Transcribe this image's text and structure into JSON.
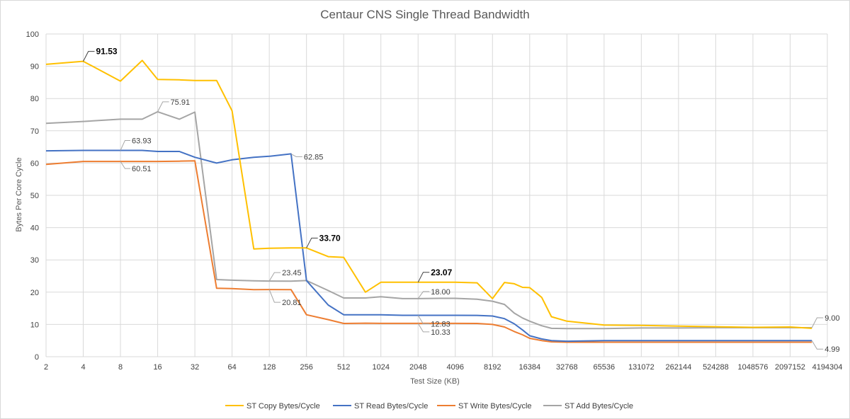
{
  "chart_data": {
    "type": "line",
    "title": "Centaur CNS Single Thread Bandwidth",
    "xlabel": "Test Size (KB)",
    "ylabel": "Bytes Per Core Cycle",
    "x_scale": "log2",
    "x_tick_labels": [
      "2",
      "4",
      "8",
      "16",
      "32",
      "64",
      "128",
      "256",
      "512",
      "1024",
      "2048",
      "4096",
      "8192",
      "16384",
      "32768",
      "65536",
      "131072",
      "262144",
      "524288",
      "1048576",
      "2097152",
      "4194304"
    ],
    "ylim": [
      0,
      100
    ],
    "y_ticks": [
      0,
      10,
      20,
      30,
      40,
      50,
      60,
      70,
      80,
      90,
      100
    ],
    "grid": true,
    "legend_position": "bottom",
    "x": [
      2,
      4,
      8,
      12,
      16,
      24,
      32,
      48,
      64,
      96,
      128,
      192,
      256,
      384,
      512,
      768,
      1024,
      1536,
      2048,
      3072,
      4096,
      6144,
      8192,
      10240,
      12288,
      14336,
      16384,
      20480,
      24576,
      32768,
      65536,
      131072,
      262144,
      524288,
      1048576,
      2097152,
      3145728
    ],
    "series": [
      {
        "name": "ST Copy Bytes/Cycle",
        "color": "#FFC000",
        "values": [
          90.6,
          91.53,
          85.4,
          91.8,
          85.9,
          85.8,
          85.6,
          85.6,
          76.2,
          33.4,
          33.6,
          33.7,
          33.7,
          31.0,
          30.8,
          20.0,
          23.07,
          23.07,
          23.07,
          23.07,
          23.07,
          22.9,
          18.0,
          23.0,
          22.6,
          21.5,
          21.4,
          18.4,
          12.4,
          11.0,
          9.8,
          9.7,
          9.5,
          9.3,
          9.1,
          9.2,
          8.8
        ]
      },
      {
        "name": "ST Read Bytes/Cycle",
        "color": "#4472C4",
        "values": [
          63.8,
          63.93,
          63.93,
          63.93,
          63.6,
          63.6,
          61.8,
          60.0,
          61.0,
          61.8,
          62.1,
          62.85,
          23.6,
          16.0,
          13.0,
          13.0,
          13.0,
          12.83,
          12.83,
          12.83,
          12.83,
          12.8,
          12.6,
          11.8,
          10.2,
          8.3,
          6.5,
          5.5,
          5.0,
          4.8,
          4.99,
          4.99,
          4.99,
          4.99,
          4.99,
          4.99,
          4.99
        ]
      },
      {
        "name": "ST Write Bytes/Cycle",
        "color": "#ED7D31",
        "values": [
          59.6,
          60.51,
          60.5,
          60.5,
          60.5,
          60.6,
          60.7,
          21.2,
          21.1,
          20.8,
          20.81,
          20.8,
          13.0,
          11.5,
          10.3,
          10.4,
          10.33,
          10.33,
          10.33,
          10.33,
          10.33,
          10.3,
          10.0,
          9.2,
          7.8,
          6.8,
          5.7,
          5.0,
          4.6,
          4.5,
          4.5,
          4.5,
          4.5,
          4.5,
          4.5,
          4.5,
          4.5
        ]
      },
      {
        "name": "ST Add Bytes/Cycle",
        "color": "#A5A5A5",
        "values": [
          72.3,
          72.9,
          73.6,
          73.6,
          75.91,
          73.6,
          75.8,
          23.9,
          23.7,
          23.5,
          23.45,
          23.4,
          23.6,
          20.5,
          18.2,
          18.2,
          18.6,
          18.0,
          18.0,
          18.1,
          18.1,
          17.8,
          17.2,
          16.2,
          13.5,
          12.0,
          11.0,
          9.6,
          8.8,
          8.7,
          8.7,
          8.9,
          8.9,
          9.0,
          9.0,
          9.0,
          9.0
        ]
      }
    ],
    "annotations": [
      {
        "series": 0,
        "x": 4,
        "label": "91.53",
        "bold": true
      },
      {
        "series": 0,
        "x": 256,
        "label": "33.70",
        "bold": true
      },
      {
        "series": 0,
        "x": 2048,
        "label": "23.07",
        "bold": true
      },
      {
        "series": 1,
        "x": 8,
        "label": "63.93",
        "bold": false
      },
      {
        "series": 1,
        "x": 192,
        "label": "62.85",
        "bold": false
      },
      {
        "series": 1,
        "x": 2048,
        "label": "12.83",
        "bold": false
      },
      {
        "series": 1,
        "x": 3145728,
        "label": "4.99",
        "bold": false
      },
      {
        "series": 2,
        "x": 8,
        "label": "60.51",
        "bold": false
      },
      {
        "series": 2,
        "x": 128,
        "label": "20.81",
        "bold": false
      },
      {
        "series": 2,
        "x": 2048,
        "label": "10.33",
        "bold": false
      },
      {
        "series": 3,
        "x": 16,
        "label": "75.91",
        "bold": false
      },
      {
        "series": 3,
        "x": 128,
        "label": "23.45",
        "bold": false
      },
      {
        "series": 3,
        "x": 2048,
        "label": "18.00",
        "bold": false
      },
      {
        "series": 3,
        "x": 3145728,
        "label": "9.00",
        "bold": false
      }
    ]
  }
}
